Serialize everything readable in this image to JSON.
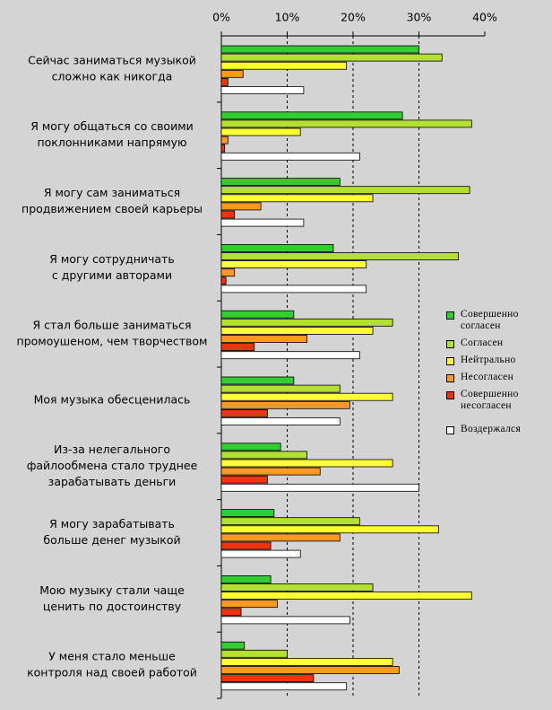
{
  "chart_data": {
    "type": "barh",
    "categories": [
      [
        "Сейчас заниматься музыкой",
        "сложно как никогда"
      ],
      [
        "Я могу общаться со своими",
        "поклонниками напрямую"
      ],
      [
        "Я могу сам заниматься",
        "продвижением своей карьеры"
      ],
      [
        "Я могу сотрудничать",
        "с другими авторами"
      ],
      [
        "Я стал больше заниматься",
        "промоушеном, чем творчеством"
      ],
      [
        "Моя музыка обесценилась"
      ],
      [
        "Из-за нелегального",
        "файлообмена стало труднее",
        "зарабатывать деньги"
      ],
      [
        "Я могу зарабатывать",
        "больше денег музыкой"
      ],
      [
        "Мою музыку стали чаще",
        "ценить по достоинству"
      ],
      [
        "У меня стало меньше",
        "контроля над своей работой"
      ]
    ],
    "series": [
      {
        "name": "Совершенно согласен",
        "color": "#33cc33",
        "values": [
          30,
          27.5,
          18,
          17,
          11,
          11,
          9,
          8,
          7.5,
          3.5
        ]
      },
      {
        "name": "Согласен",
        "color": "#b4e034",
        "values": [
          33.5,
          38,
          37.7,
          36,
          26,
          18,
          13,
          21,
          23,
          10
        ]
      },
      {
        "name": "Нейтрально",
        "color": "#ffff33",
        "values": [
          19,
          12,
          23,
          22,
          23,
          26,
          26,
          33,
          38,
          26
        ]
      },
      {
        "name": "Несогласен",
        "color": "#ff9922",
        "values": [
          3.3,
          1,
          6,
          2,
          13,
          19.5,
          15,
          18,
          8.5,
          27
        ]
      },
      {
        "name": "Совершенно несогласен",
        "color": "#ee3311",
        "values": [
          1,
          0.5,
          2,
          0.7,
          5,
          7,
          7,
          7.5,
          3,
          14
        ]
      },
      {
        "name": "Воздержался",
        "color": "#ffffff",
        "values": [
          12.5,
          21,
          12.5,
          22,
          21,
          18,
          30,
          12,
          19.5,
          19
        ]
      }
    ],
    "xlim": [
      0,
      40
    ],
    "xticks": [
      {
        "value": 0,
        "label": "0%"
      },
      {
        "value": 10,
        "label": "10%"
      },
      {
        "value": 20,
        "label": "20%"
      },
      {
        "value": 30,
        "label": "30%"
      },
      {
        "value": 40,
        "label": "40%"
      }
    ],
    "grid": true,
    "legend": "right"
  }
}
